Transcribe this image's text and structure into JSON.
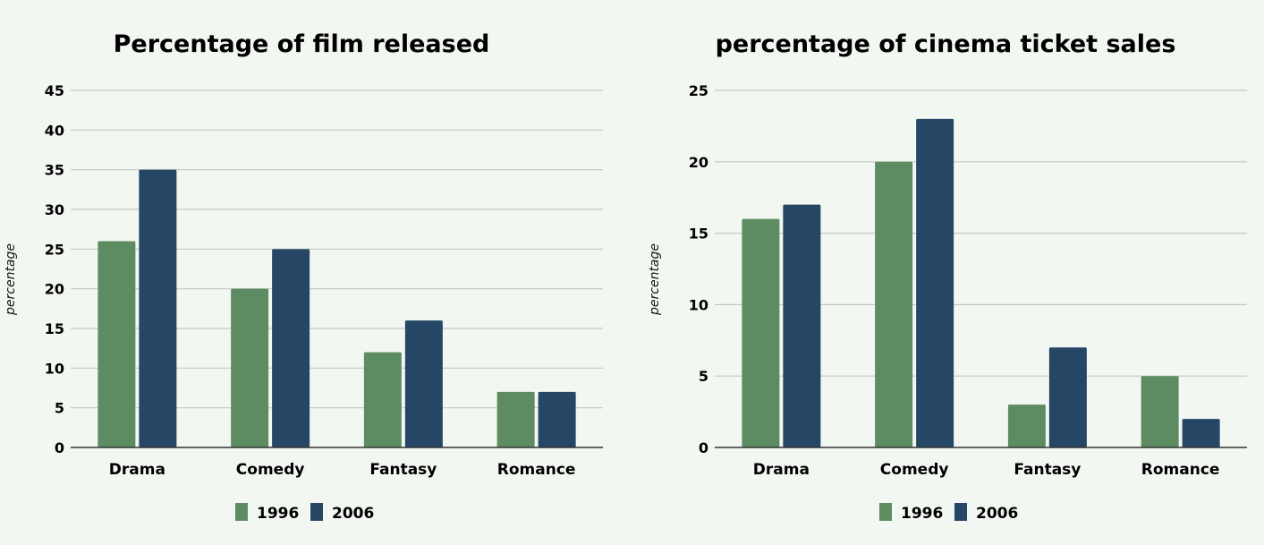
{
  "colors": {
    "background": "#f3f7f2",
    "series_1996": "#5e8c62",
    "series_2006": "#264665"
  },
  "chart_data": [
    {
      "type": "bar",
      "title": "Percentage of film released",
      "xlabel": "",
      "ylabel": "percentage",
      "categories": [
        "Drama",
        "Comedy",
        "Fantasy",
        "Romance"
      ],
      "series": [
        {
          "name": "1996",
          "values": [
            26,
            20,
            12,
            7
          ]
        },
        {
          "name": "2006",
          "values": [
            35,
            25,
            16,
            7
          ]
        }
      ],
      "ylim": [
        0,
        45
      ],
      "yticks": [
        0,
        5,
        10,
        15,
        20,
        25,
        30,
        35,
        40,
        45
      ],
      "grid": true,
      "legend": "bottom-center"
    },
    {
      "type": "bar",
      "title": "percentage of cinema ticket sales",
      "xlabel": "",
      "ylabel": "percentage",
      "categories": [
        "Drama",
        "Comedy",
        "Fantasy",
        "Romance"
      ],
      "series": [
        {
          "name": "1996",
          "values": [
            16,
            20,
            3,
            5
          ]
        },
        {
          "name": "2006",
          "values": [
            17,
            23,
            7,
            2
          ]
        }
      ],
      "ylim": [
        0,
        25
      ],
      "yticks": [
        0,
        5,
        10,
        15,
        20,
        25
      ],
      "grid": true,
      "legend": "bottom-center"
    }
  ]
}
